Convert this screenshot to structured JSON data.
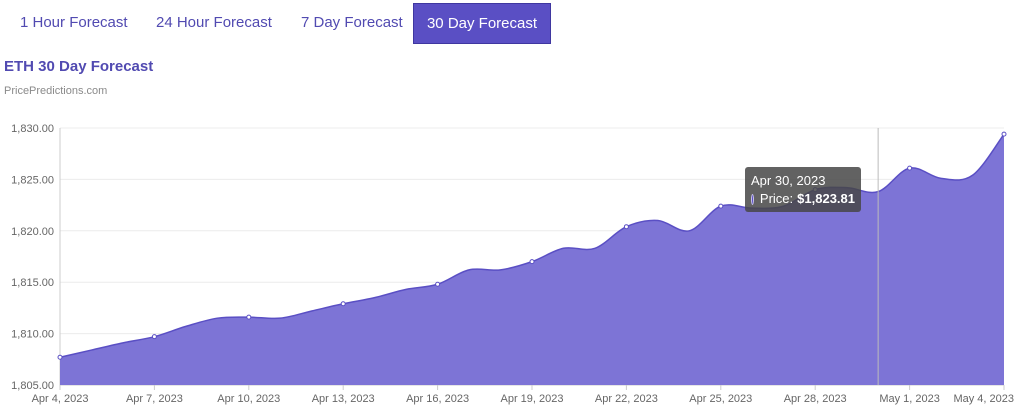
{
  "tabs": [
    {
      "label": "1 Hour Forecast",
      "active": false
    },
    {
      "label": "24 Hour Forecast",
      "active": false
    },
    {
      "label": "7 Day Forecast",
      "active": false
    },
    {
      "label": "30 Day Forecast",
      "active": true
    }
  ],
  "colors": {
    "accent": "#5a4fc4",
    "area_fill": "#7d74d6",
    "line": "#5a4fc4"
  },
  "chart_data": {
    "type": "area",
    "title": "ETH 30 Day Forecast",
    "subtitle": "PricePredictions.com",
    "xlabel": "",
    "ylabel": "",
    "ylim": [
      1805,
      1830
    ],
    "yticks": [
      "1,805.00",
      "1,810.00",
      "1,815.00",
      "1,820.00",
      "1,825.00",
      "1,830.00"
    ],
    "ytick_values": [
      1805,
      1810,
      1815,
      1820,
      1825,
      1830
    ],
    "xticks": [
      "Apr 4, 2023",
      "Apr 7, 2023",
      "Apr 10, 2023",
      "Apr 13, 2023",
      "Apr 16, 2023",
      "Apr 19, 2023",
      "Apr 22, 2023",
      "Apr 25, 2023",
      "Apr 28, 2023",
      "May 1, 2023",
      "May 4, 2023"
    ],
    "grid": true,
    "series": [
      {
        "name": "Price",
        "x": [
          "Apr 4, 2023",
          "Apr 5, 2023",
          "Apr 6, 2023",
          "Apr 7, 2023",
          "Apr 8, 2023",
          "Apr 9, 2023",
          "Apr 10, 2023",
          "Apr 11, 2023",
          "Apr 12, 2023",
          "Apr 13, 2023",
          "Apr 14, 2023",
          "Apr 15, 2023",
          "Apr 16, 2023",
          "Apr 17, 2023",
          "Apr 18, 2023",
          "Apr 19, 2023",
          "Apr 20, 2023",
          "Apr 21, 2023",
          "Apr 22, 2023",
          "Apr 23, 2023",
          "Apr 24, 2023",
          "Apr 25, 2023",
          "Apr 26, 2023",
          "Apr 27, 2023",
          "Apr 28, 2023",
          "Apr 29, 2023",
          "Apr 30, 2023",
          "May 1, 2023",
          "May 2, 2023",
          "May 3, 2023",
          "May 4, 2023"
        ],
        "values": [
          1807.7,
          1808.4,
          1809.1,
          1809.7,
          1810.7,
          1811.5,
          1811.6,
          1811.5,
          1812.2,
          1812.9,
          1813.5,
          1814.3,
          1814.8,
          1816.2,
          1816.2,
          1817.0,
          1818.3,
          1818.3,
          1820.4,
          1821.0,
          1820.0,
          1822.4,
          1822.2,
          1822.4,
          1824.0,
          1824.2,
          1823.81,
          1826.1,
          1825.1,
          1825.4,
          1829.4
        ]
      }
    ]
  },
  "tooltip": {
    "date": "Apr 30, 2023",
    "label": "Price:",
    "value": "$1,823.81",
    "index": 26
  }
}
